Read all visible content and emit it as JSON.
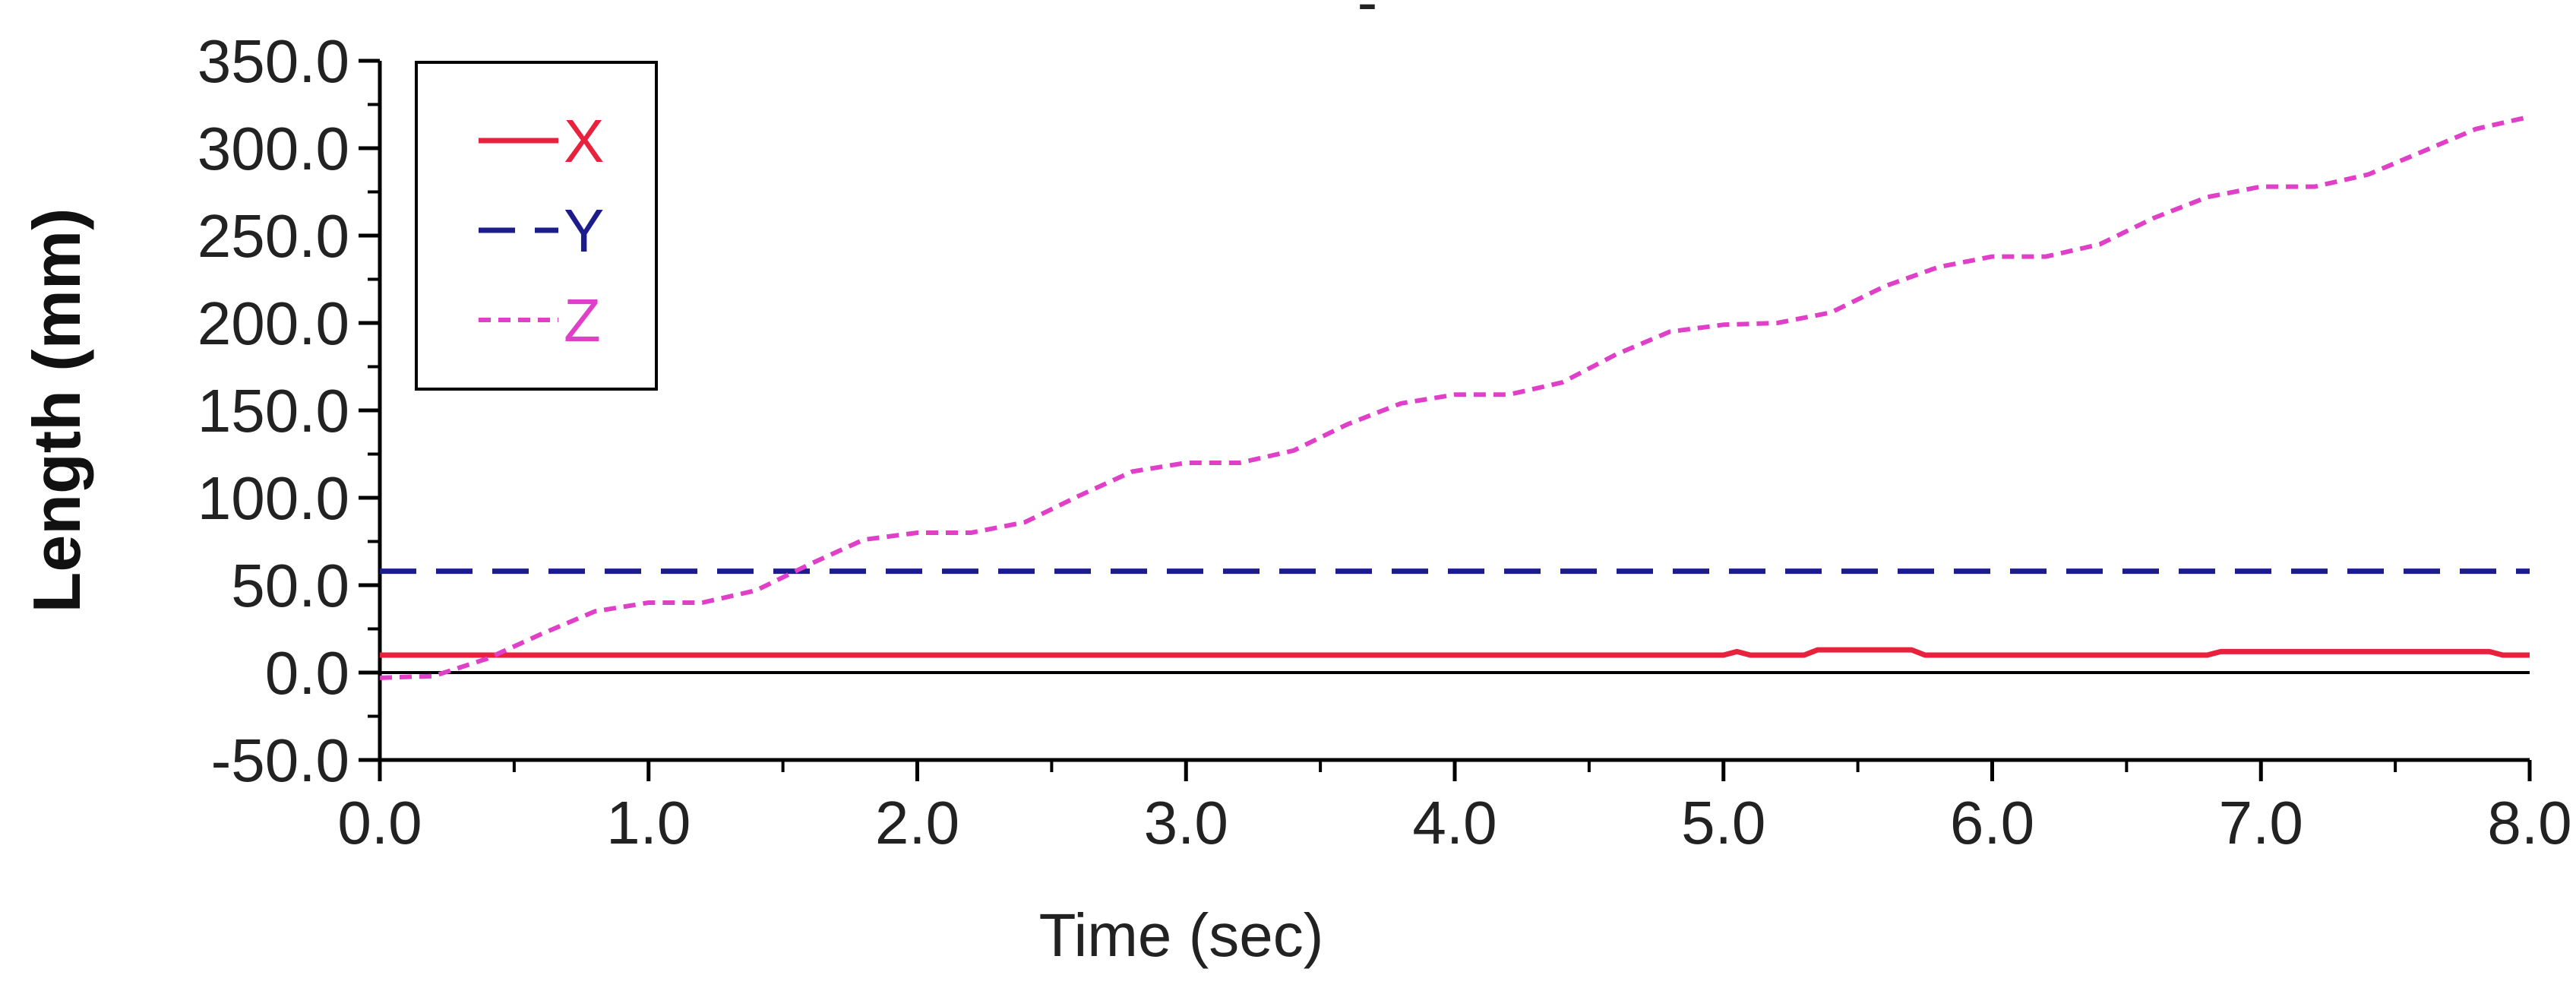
{
  "chart_data": {
    "type": "line",
    "title": "",
    "xlabel": "Time (sec)",
    "ylabel": "Length (mm)",
    "xlim": [
      0,
      8
    ],
    "ylim": [
      -50,
      350
    ],
    "x_ticks": [
      "0.0",
      "1.0",
      "2.0",
      "3.0",
      "4.0",
      "5.0",
      "6.0",
      "7.0",
      "8.0"
    ],
    "y_ticks": [
      "-50.0",
      "0.0",
      "50.0",
      "100.0",
      "150.0",
      "200.0",
      "250.0",
      "300.0",
      "350.0"
    ],
    "grid": false,
    "legend_position": "top-left",
    "series": [
      {
        "name": "X",
        "color": "#e8213c",
        "style": "solid",
        "x": [
          0.0,
          1.0,
          2.0,
          3.0,
          4.0,
          5.0,
          5.05,
          5.1,
          5.3,
          5.35,
          5.7,
          5.75,
          6.0,
          6.8,
          6.85,
          7.5,
          7.85,
          7.9,
          8.0
        ],
        "y": [
          10,
          10,
          10,
          10,
          10,
          10,
          12,
          10,
          10,
          13,
          13,
          10,
          10,
          10,
          12,
          12,
          12,
          10,
          10
        ]
      },
      {
        "name": "Y",
        "color": "#1c1c8c",
        "style": "dashed",
        "x": [
          0,
          8
        ],
        "y": [
          58,
          58
        ]
      },
      {
        "name": "Z",
        "color": "#e040c8",
        "style": "dotted",
        "x": [
          0.0,
          0.2,
          0.4,
          0.6,
          0.8,
          1.0,
          1.2,
          1.4,
          1.6,
          1.8,
          2.0,
          2.2,
          2.4,
          2.6,
          2.8,
          3.0,
          3.2,
          3.4,
          3.6,
          3.8,
          4.0,
          4.2,
          4.4,
          4.6,
          4.8,
          5.0,
          5.2,
          5.4,
          5.6,
          5.8,
          6.0,
          6.2,
          6.4,
          6.6,
          6.8,
          7.0,
          7.2,
          7.4,
          7.6,
          7.8,
          8.0
        ],
        "y": [
          -3,
          -2,
          8,
          22,
          35,
          40,
          40,
          47,
          62,
          76,
          80,
          80,
          86,
          101,
          115,
          120,
          120,
          127,
          142,
          154,
          159,
          159,
          166,
          182,
          195,
          199,
          200,
          206,
          221,
          232,
          238,
          238,
          245,
          260,
          272,
          278,
          278,
          285,
          298,
          311,
          318
        ]
      }
    ]
  },
  "top_mark": "-"
}
